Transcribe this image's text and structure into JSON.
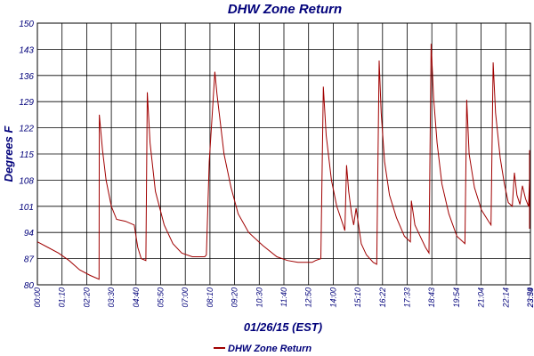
{
  "chart_data": {
    "type": "line",
    "title": "DHW Zone Return",
    "xlabel": "01/26/15 (EST)",
    "ylabel": "Degrees F",
    "ylim": [
      80,
      150
    ],
    "yticks": [
      80,
      87,
      94,
      101,
      108,
      115,
      122,
      129,
      136,
      143,
      150
    ],
    "xlim": [
      "00:00",
      "23:59"
    ],
    "xtick_labels": [
      "00:00",
      "01:10",
      "02:20",
      "03:30",
      "04:40",
      "05:50",
      "07:00",
      "08:10",
      "09:20",
      "10:30",
      "11:40",
      "12:50",
      "14:00",
      "15:10",
      "16:22",
      "17:33",
      "18:43",
      "19:54",
      "21:04",
      "22:14",
      "23:34",
      "23:59"
    ],
    "grid": true,
    "legend": "bottom",
    "series": [
      {
        "name": "DHW Zone Return",
        "color": "#a00000",
        "points": [
          [
            "00:00",
            91.5
          ],
          [
            "00:30",
            90
          ],
          [
            "01:00",
            88.5
          ],
          [
            "01:30",
            86.5
          ],
          [
            "02:00",
            84
          ],
          [
            "02:30",
            82.5
          ],
          [
            "02:55",
            81.5
          ],
          [
            "02:56",
            125.5
          ],
          [
            "03:05",
            116
          ],
          [
            "03:15",
            108
          ],
          [
            "03:30",
            101
          ],
          [
            "03:45",
            97.5
          ],
          [
            "04:10",
            97
          ],
          [
            "04:35",
            96
          ],
          [
            "04:45",
            90
          ],
          [
            "04:55",
            87
          ],
          [
            "05:08",
            86.5
          ],
          [
            "05:12",
            131.5
          ],
          [
            "05:20",
            118
          ],
          [
            "05:35",
            105
          ],
          [
            "06:00",
            96
          ],
          [
            "06:25",
            91
          ],
          [
            "06:50",
            88.5
          ],
          [
            "07:20",
            87.5
          ],
          [
            "07:55",
            87.5
          ],
          [
            "08:00",
            88
          ],
          [
            "08:08",
            113
          ],
          [
            "08:18",
            128
          ],
          [
            "08:24",
            137
          ],
          [
            "08:30",
            131
          ],
          [
            "08:50",
            115
          ],
          [
            "09:10",
            106
          ],
          [
            "09:30",
            99
          ],
          [
            "10:00",
            94
          ],
          [
            "10:40",
            90.5
          ],
          [
            "11:20",
            87.5
          ],
          [
            "11:50",
            86.5
          ],
          [
            "12:20",
            86
          ],
          [
            "13:00",
            86
          ],
          [
            "13:10",
            86.5
          ],
          [
            "13:25",
            87
          ],
          [
            "13:32",
            133
          ],
          [
            "13:40",
            120
          ],
          [
            "13:55",
            108
          ],
          [
            "14:10",
            101
          ],
          [
            "14:28",
            96
          ],
          [
            "14:33",
            94.5
          ],
          [
            "14:38",
            112
          ],
          [
            "14:44",
            105
          ],
          [
            "14:52",
            99
          ],
          [
            "14:58",
            96
          ],
          [
            "15:05",
            100.5
          ],
          [
            "15:12",
            96
          ],
          [
            "15:20",
            91
          ],
          [
            "15:35",
            88
          ],
          [
            "15:55",
            86
          ],
          [
            "16:05",
            85.5
          ],
          [
            "16:12",
            140
          ],
          [
            "16:18",
            126
          ],
          [
            "16:28",
            113
          ],
          [
            "16:42",
            104
          ],
          [
            "17:02",
            98
          ],
          [
            "17:25",
            93
          ],
          [
            "17:42",
            91.5
          ],
          [
            "17:45",
            102.5
          ],
          [
            "17:55",
            96
          ],
          [
            "18:10",
            93
          ],
          [
            "18:25",
            90
          ],
          [
            "18:35",
            88.5
          ],
          [
            "18:41",
            144.5
          ],
          [
            "18:48",
            130
          ],
          [
            "18:58",
            118
          ],
          [
            "19:12",
            107
          ],
          [
            "19:32",
            99
          ],
          [
            "19:55",
            93
          ],
          [
            "20:18",
            91
          ],
          [
            "20:23",
            129.5
          ],
          [
            "20:30",
            115
          ],
          [
            "20:45",
            106
          ],
          [
            "21:05",
            100
          ],
          [
            "21:25",
            97
          ],
          [
            "21:32",
            96
          ],
          [
            "21:38",
            139.5
          ],
          [
            "21:45",
            126
          ],
          [
            "21:58",
            114
          ],
          [
            "22:10",
            107
          ],
          [
            "22:22",
            102
          ],
          [
            "22:35",
            101
          ],
          [
            "22:42",
            110
          ],
          [
            "22:50",
            104
          ],
          [
            "23:00",
            101.5
          ],
          [
            "23:08",
            106.5
          ],
          [
            "23:18",
            103
          ],
          [
            "23:28",
            101
          ],
          [
            "23:36",
            108
          ],
          [
            "23:45",
            103
          ],
          [
            "23:55",
            100.5
          ],
          [
            "24:06",
            97
          ],
          [
            "24:14",
            95
          ],
          [
            "24:18",
            105.5
          ],
          [
            "24:25",
            100.5
          ],
          [
            "24:31",
            110
          ],
          [
            "24:38",
            109
          ],
          [
            "24:44",
            112
          ],
          [
            "24:50",
            116
          ],
          [
            "24:55",
            114.5
          ],
          [
            "25:00",
            115
          ]
        ]
      }
    ]
  }
}
